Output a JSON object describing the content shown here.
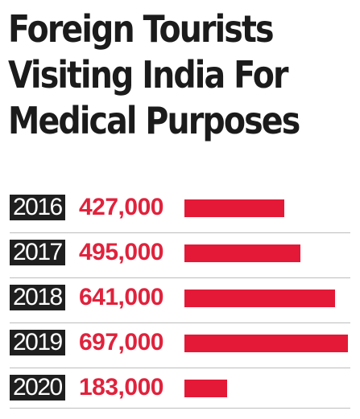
{
  "chart_data": {
    "type": "bar",
    "title_lines": [
      "Foreign Tourists",
      "Visiting India For",
      "Medical Purposes"
    ],
    "categories": [
      "2016",
      "2017",
      "2018",
      "2019",
      "2020"
    ],
    "values": [
      427000,
      495000,
      641000,
      697000,
      183000
    ],
    "value_labels": [
      "427,000",
      "495,000",
      "641,000",
      "697,000",
      "183,000"
    ],
    "bar_color": "#e41937",
    "value_color": "#e0223c",
    "year_label_background": "#1f1f1f",
    "orientation": "horizontal",
    "grid": false,
    "legend": "none"
  }
}
